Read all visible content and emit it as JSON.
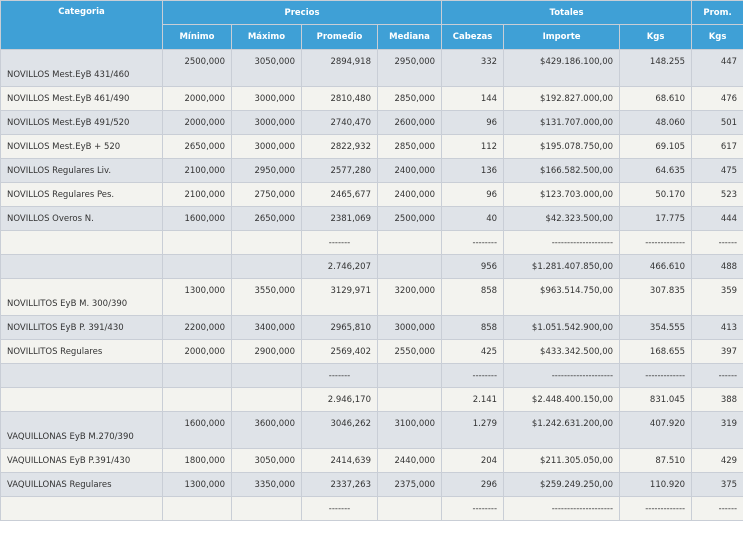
{
  "headers": {
    "categoria": "Categoria",
    "precios": "Precios",
    "totales": "Totales",
    "prom": "Prom.",
    "minimo": "Mínimo",
    "maximo": "Máximo",
    "promedio": "Promedio",
    "mediana": "Mediana",
    "cabezas": "Cabezas",
    "importe": "Importe",
    "kgs": "Kgs",
    "prom_kgs": "Kgs"
  },
  "rows": [
    {
      "cat": "NOVILLOS Mest.EyB 431/460",
      "min": "2500,000",
      "max": "3050,000",
      "prom": "2894,918",
      "med": "2950,000",
      "cab": "332",
      "imp": "$429.186.100,00",
      "kgs": "148.255",
      "pk": "447"
    },
    {
      "cat": "NOVILLOS Mest.EyB 461/490",
      "min": "2000,000",
      "max": "3000,000",
      "prom": "2810,480",
      "med": "2850,000",
      "cab": "144",
      "imp": "$192.827.000,00",
      "kgs": "68.610",
      "pk": "476"
    },
    {
      "cat": "NOVILLOS Mest.EyB 491/520",
      "min": "2000,000",
      "max": "3000,000",
      "prom": "2740,470",
      "med": "2600,000",
      "cab": "96",
      "imp": "$131.707.000,00",
      "kgs": "48.060",
      "pk": "501"
    },
    {
      "cat": "NOVILLOS Mest.EyB + 520",
      "min": "2650,000",
      "max": "3000,000",
      "prom": "2822,932",
      "med": "2850,000",
      "cab": "112",
      "imp": "$195.078.750,00",
      "kgs": "69.105",
      "pk": "617"
    },
    {
      "cat": "NOVILLOS Regulares Liv.",
      "min": "2100,000",
      "max": "2950,000",
      "prom": "2577,280",
      "med": "2400,000",
      "cab": "136",
      "imp": "$166.582.500,00",
      "kgs": "64.635",
      "pk": "475"
    },
    {
      "cat": "NOVILLOS Regulares Pes.",
      "min": "2100,000",
      "max": "2750,000",
      "prom": "2465,677",
      "med": "2400,000",
      "cab": "96",
      "imp": "$123.703.000,00",
      "kgs": "50.170",
      "pk": "523"
    },
    {
      "cat": "NOVILLOS Overos N.",
      "min": "1600,000",
      "max": "2650,000",
      "prom": "2381,069",
      "med": "2500,000",
      "cab": "40",
      "imp": "$42.323.500,00",
      "kgs": "17.775",
      "pk": "444"
    },
    {
      "sep": true,
      "prom": "-------",
      "cab": "--------",
      "imp": "--------------------",
      "kgs": "-------------",
      "pk": "------"
    },
    {
      "total": true,
      "prom": "2.746,207",
      "cab": "956",
      "imp": "$1.281.407.850,00",
      "kgs": "466.610",
      "pk": "488"
    },
    {
      "cat": "NOVILLITOS EyB M. 300/390",
      "min": "1300,000",
      "max": "3550,000",
      "prom": "3129,971",
      "med": "3200,000",
      "cab": "858",
      "imp": "$963.514.750,00",
      "kgs": "307.835",
      "pk": "359"
    },
    {
      "cat": "NOVILLITOS EyB P. 391/430",
      "min": "2200,000",
      "max": "3400,000",
      "prom": "2965,810",
      "med": "3000,000",
      "cab": "858",
      "imp": "$1.051.542.900,00",
      "kgs": "354.555",
      "pk": "413"
    },
    {
      "cat": "NOVILLITOS Regulares",
      "min": "2000,000",
      "max": "2900,000",
      "prom": "2569,402",
      "med": "2550,000",
      "cab": "425",
      "imp": "$433.342.500,00",
      "kgs": "168.655",
      "pk": "397"
    },
    {
      "sep": true,
      "prom": "-------",
      "cab": "--------",
      "imp": "--------------------",
      "kgs": "-------------",
      "pk": "------"
    },
    {
      "total": true,
      "prom": "2.946,170",
      "cab": "2.141",
      "imp": "$2.448.400.150,00",
      "kgs": "831.045",
      "pk": "388"
    },
    {
      "cat": "VAQUILLONAS EyB M.270/390",
      "min": "1600,000",
      "max": "3600,000",
      "prom": "3046,262",
      "med": "3100,000",
      "cab": "1.279",
      "imp": "$1.242.631.200,00",
      "kgs": "407.920",
      "pk": "319"
    },
    {
      "cat": "VAQUILLONAS EyB P.391/430",
      "min": "1800,000",
      "max": "3050,000",
      "prom": "2414,639",
      "med": "2440,000",
      "cab": "204",
      "imp": "$211.305.050,00",
      "kgs": "87.510",
      "pk": "429"
    },
    {
      "cat": "VAQUILLONAS Regulares",
      "min": "1300,000",
      "max": "3350,000",
      "prom": "2337,263",
      "med": "2375,000",
      "cab": "296",
      "imp": "$259.249.250,00",
      "kgs": "110.920",
      "pk": "375"
    },
    {
      "sep": true,
      "prom": "-------",
      "cab": "--------",
      "imp": "--------------------",
      "kgs": "-------------",
      "pk": "------"
    }
  ]
}
